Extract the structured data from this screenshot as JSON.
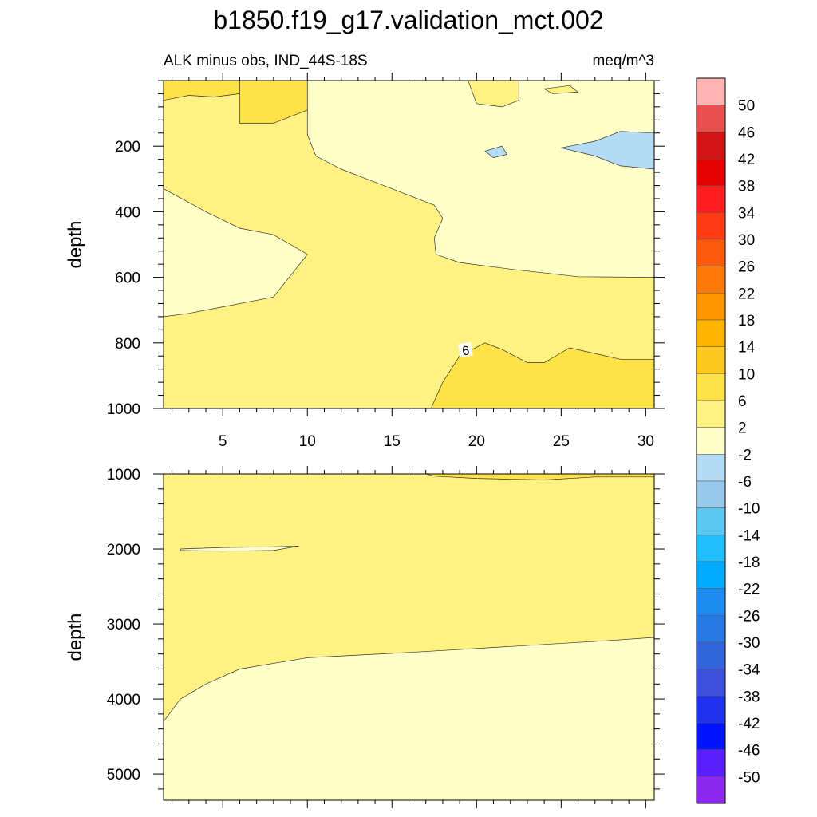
{
  "chart_data": {
    "type": "contour",
    "title": "b1850.f19_g17.validation_mct.002",
    "subtitle_left": "ALK minus obs, IND_44S-18S",
    "subtitle_right": "meq/m^3",
    "panels": [
      {
        "name": "upper",
        "ylabel": "depth",
        "ylim": [
          1000,
          0
        ],
        "xlim": [
          1.5,
          30.5
        ],
        "x_ticks": [
          5,
          10,
          15,
          20,
          25,
          30
        ],
        "y_ticks": [
          200,
          400,
          600,
          800,
          1000
        ],
        "contour_labels": [
          {
            "text": "6",
            "x": 19.4,
            "y": 822
          }
        ],
        "regions": [
          {
            "level_band": "2 to 6",
            "color": "#fff282",
            "area": "background"
          },
          {
            "level_band": "6 to 10",
            "color": "#ffe346",
            "area": "near-surface, x 1.5-6 and x 6-10",
            "points": [
              [
                1.5,
                0
              ],
              [
                6,
                0
              ],
              [
                6,
                40
              ],
              [
                4.5,
                50
              ],
              [
                3,
                45
              ],
              [
                1.5,
                60
              ]
            ]
          },
          {
            "level_band": "6 to 10",
            "color": "#ffe346",
            "area": "near-surface west",
            "points": [
              [
                6,
                0
              ],
              [
                10,
                0
              ],
              [
                10,
                90
              ],
              [
                8,
                130
              ],
              [
                6,
                130
              ]
            ]
          },
          {
            "level_band": "-2 to 2",
            "color": "#ffffc8",
            "area": "upper right quadrant",
            "points": [
              [
                10,
                0
              ],
              [
                30.5,
                0
              ],
              [
                30.5,
                600
              ],
              [
                26,
                598
              ],
              [
                22,
                575
              ],
              [
                19,
                555
              ],
              [
                17.6,
                530
              ],
              [
                17.5,
                480
              ],
              [
                18,
                420
              ],
              [
                17.5,
                380
              ],
              [
                15,
                330
              ],
              [
                13.5,
                300
              ],
              [
                12,
                270
              ],
              [
                10.5,
                230
              ],
              [
                10,
                165
              ]
            ]
          },
          {
            "level_band": "-6 to -2",
            "color": "#b4dcf5",
            "area": "patch near x 28, 200m",
            "points": [
              [
                25,
                205
              ],
              [
                27,
                185
              ],
              [
                28.5,
                155
              ],
              [
                30.5,
                160
              ],
              [
                30.5,
                270
              ],
              [
                28.5,
                260
              ],
              [
                27,
                230
              ]
            ]
          },
          {
            "level_band": "-6 to -2",
            "color": "#b4dcf5",
            "area": "small patch x 20, 220m",
            "points": [
              [
                20.5,
                215
              ],
              [
                21.5,
                200
              ],
              [
                21.8,
                225
              ],
              [
                21,
                235
              ]
            ]
          },
          {
            "level_band": "2 to 6",
            "color": "#fff282",
            "area": "small patch x 19-22 near surface",
            "points": [
              [
                19.5,
                0
              ],
              [
                22.5,
                0
              ],
              [
                22.5,
                60
              ],
              [
                21.5,
                80
              ],
              [
                20,
                70
              ]
            ]
          },
          {
            "level_band": "2 to 6",
            "color": "#fff282",
            "area": "small patch x 24-26 near surface",
            "points": [
              [
                24,
                25
              ],
              [
                25.5,
                15
              ],
              [
                26,
                35
              ],
              [
                24.5,
                40
              ]
            ]
          },
          {
            "level_band": "-2 to 2",
            "color": "#ffffc8",
            "area": "left mid patch",
            "points": [
              [
                1.5,
                330
              ],
              [
                4,
                400
              ],
              [
                6,
                450
              ],
              [
                8,
                470
              ],
              [
                10,
                530
              ],
              [
                8,
                660
              ],
              [
                5,
                690
              ],
              [
                3,
                710
              ],
              [
                1.5,
                720
              ]
            ]
          },
          {
            "level_band": "6 to 10",
            "color": "#ffe346",
            "area": "lower right",
            "points": [
              [
                17.3,
                1000
              ],
              [
                18,
                920
              ],
              [
                19,
                840
              ],
              [
                20.5,
                800
              ],
              [
                21.5,
                820
              ],
              [
                23,
                860
              ],
              [
                24,
                860
              ],
              [
                25.5,
                815
              ],
              [
                28.5,
                850
              ],
              [
                30.5,
                850
              ],
              [
                30.5,
                1000
              ]
            ]
          }
        ]
      },
      {
        "name": "lower",
        "ylabel": "depth",
        "ylim": [
          5350,
          1000
        ],
        "xlim": [
          1.5,
          30.5
        ],
        "y_ticks": [
          1000,
          2000,
          3000,
          4000,
          5000
        ],
        "regions": [
          {
            "level_band": "2 to 6",
            "color": "#fff282",
            "area": "background"
          },
          {
            "level_band": "-2 to 2",
            "color": "#ffffc8",
            "area": "deep layer",
            "points": [
              [
                1.5,
                4300
              ],
              [
                2.5,
                4000
              ],
              [
                4,
                3800
              ],
              [
                6,
                3600
              ],
              [
                10,
                3450
              ],
              [
                16,
                3380
              ],
              [
                22,
                3300
              ],
              [
                28,
                3220
              ],
              [
                30.5,
                3180
              ],
              [
                30.5,
                5350
              ],
              [
                1.5,
                5350
              ]
            ]
          },
          {
            "level_band": "-2 to 2",
            "color": "#ffffc8",
            "area": "thin patch 2000m",
            "points": [
              [
                2.5,
                2000
              ],
              [
                5,
                1980
              ],
              [
                8,
                1970
              ],
              [
                9.5,
                1960
              ],
              [
                8,
                2020
              ],
              [
                5,
                2030
              ],
              [
                2.5,
                2020
              ]
            ]
          },
          {
            "level_band": "6 to 10",
            "color": "#ffe346",
            "area": "thin strip near 1000m, right",
            "points": [
              [
                17,
                1000
              ],
              [
                30.5,
                1000
              ],
              [
                30.5,
                1040
              ],
              [
                27,
                1040
              ],
              [
                24,
                1080
              ],
              [
                20,
                1060
              ],
              [
                17.5,
                1030
              ]
            ]
          }
        ]
      }
    ],
    "colorbar": {
      "labels": [
        "50",
        "46",
        "42",
        "38",
        "34",
        "30",
        "26",
        "22",
        "18",
        "14",
        "10",
        "6",
        "2",
        "-2",
        "-6",
        "-10",
        "-14",
        "-18",
        "-22",
        "-26",
        "-30",
        "-34",
        "-38",
        "-42",
        "-46",
        "-50"
      ],
      "colors": [
        "#ffb4b4",
        "#e85050",
        "#d21414",
        "#e60000",
        "#ff1e1e",
        "#ff3c14",
        "#ff5a0a",
        "#ff780a",
        "#ff9600",
        "#ffb400",
        "#ffc81e",
        "#ffe346",
        "#fff282",
        "#ffffc8",
        "#b4dcf5",
        "#96c8eb",
        "#5ac8f0",
        "#1ebeff",
        "#00aaff",
        "#1e8cf0",
        "#2878e6",
        "#3264dc",
        "#3c50dc",
        "#1e32f0",
        "#0014ff",
        "#5a1eff",
        "#8c28f0"
      ]
    }
  }
}
